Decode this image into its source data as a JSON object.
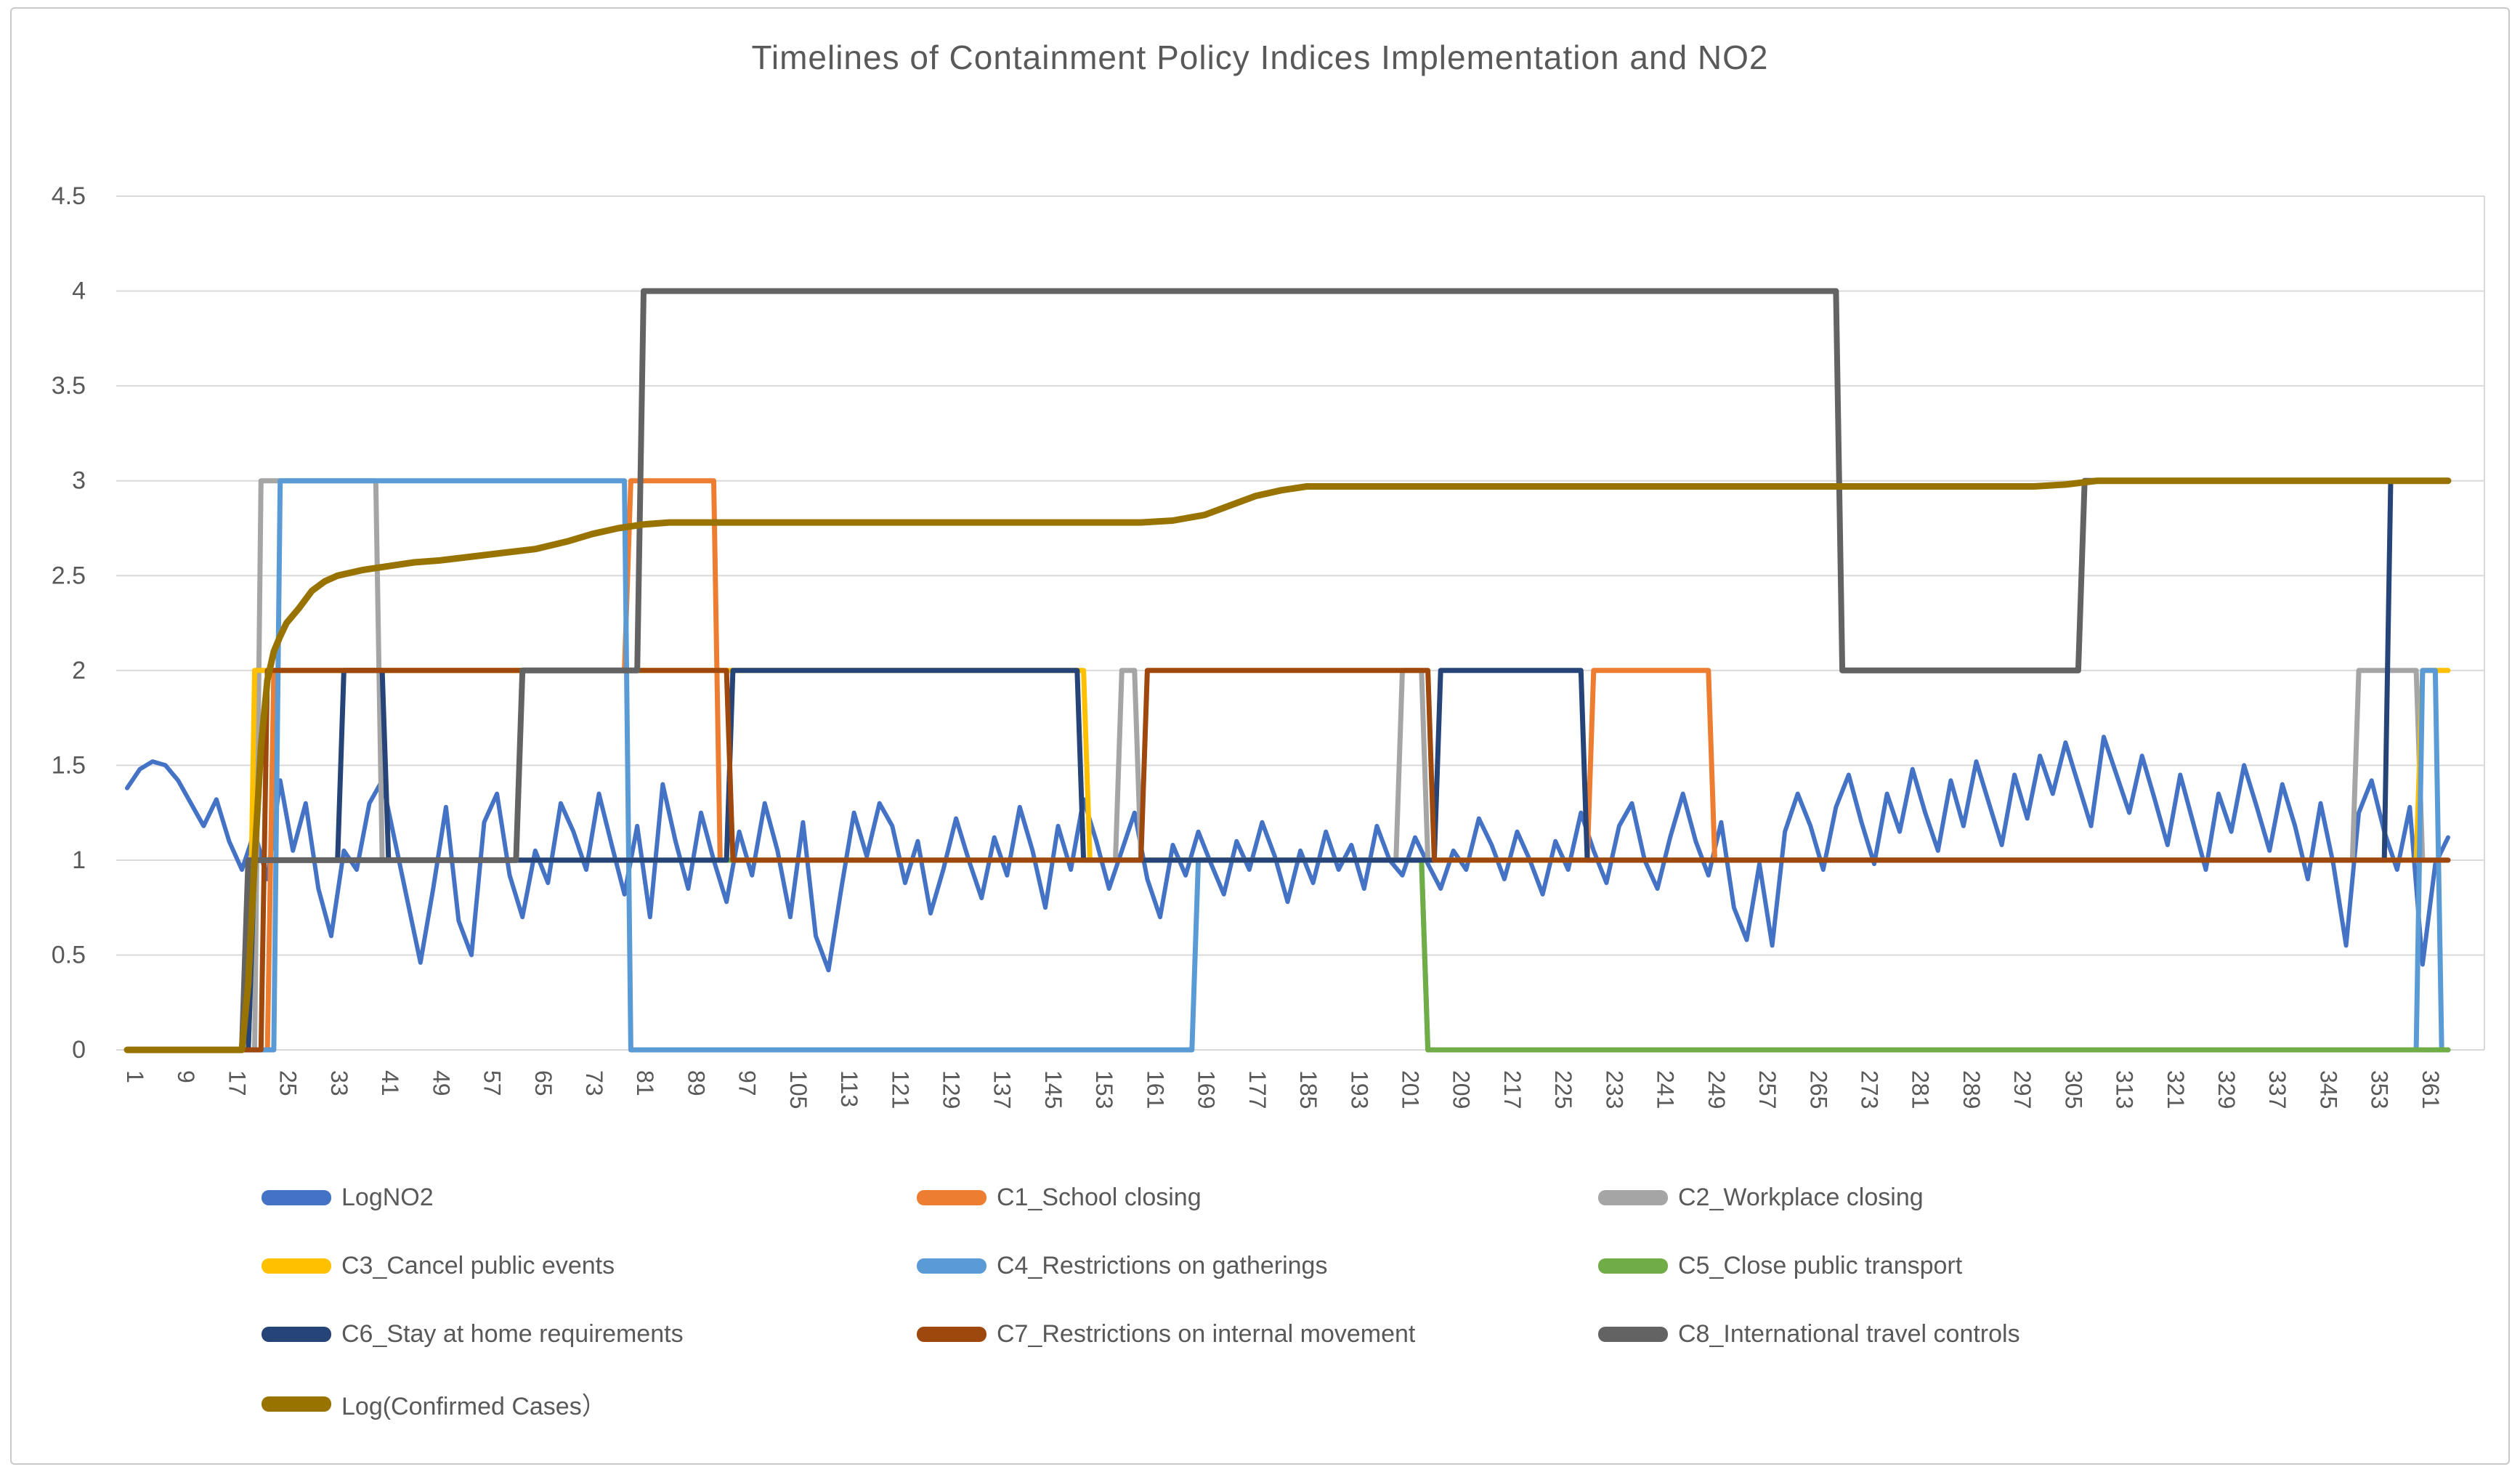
{
  "chart_data": {
    "type": "line",
    "title": "Timelines of Containment Policy Indices Implementation and NO2",
    "grid": true,
    "legend_position": "bottom",
    "x_axis": {
      "range": [
        1,
        365
      ],
      "tick_labels": [
        "1",
        "9",
        "17",
        "25",
        "33",
        "41",
        "49",
        "57",
        "65",
        "73",
        "81",
        "89",
        "97",
        "105",
        "113",
        "121",
        "129",
        "137",
        "145",
        "153",
        "161",
        "169",
        "177",
        "185",
        "193",
        "201",
        "209",
        "217",
        "225",
        "233",
        "241",
        "249",
        "257",
        "265",
        "273",
        "281",
        "289",
        "297",
        "305",
        "313",
        "321",
        "329",
        "337",
        "345",
        "353",
        "361"
      ]
    },
    "y_axis": {
      "range": [
        0,
        4.5
      ],
      "tick_labels": [
        "0",
        "0.5",
        "1",
        "1.5",
        "2",
        "2.5",
        "3",
        "3.5",
        "4",
        "4.5"
      ]
    },
    "series": [
      {
        "name": "LogNO2",
        "color": "#4472C4",
        "width": 6,
        "kind": "daily",
        "start_day": 1,
        "day_step": 2,
        "values": [
          1.38,
          1.48,
          1.52,
          1.5,
          1.42,
          1.3,
          1.18,
          1.32,
          1.1,
          0.95,
          1.15,
          0.9,
          1.42,
          1.05,
          1.3,
          0.85,
          0.6,
          1.05,
          0.95,
          1.3,
          1.42,
          1.1,
          0.78,
          0.46,
          0.85,
          1.28,
          0.68,
          0.5,
          1.2,
          1.35,
          0.92,
          0.7,
          1.05,
          0.88,
          1.3,
          1.15,
          0.95,
          1.35,
          1.08,
          0.82,
          1.18,
          0.7,
          1.4,
          1.1,
          0.85,
          1.25,
          1.0,
          0.78,
          1.15,
          0.92,
          1.3,
          1.05,
          0.7,
          1.2,
          0.6,
          0.42,
          0.85,
          1.25,
          1.02,
          1.3,
          1.18,
          0.88,
          1.1,
          0.72,
          0.95,
          1.22,
          1.0,
          0.8,
          1.12,
          0.92,
          1.28,
          1.05,
          0.75,
          1.18,
          0.95,
          1.32,
          1.1,
          0.85,
          1.05,
          1.25,
          0.9,
          0.7,
          1.08,
          0.92,
          1.15,
          0.98,
          0.82,
          1.1,
          0.95,
          1.2,
          1.02,
          0.78,
          1.05,
          0.88,
          1.15,
          0.95,
          1.08,
          0.85,
          1.18,
          1.0,
          0.92,
          1.12,
          0.98,
          0.85,
          1.05,
          0.95,
          1.22,
          1.08,
          0.9,
          1.15,
          1.0,
          0.82,
          1.1,
          0.95,
          1.25,
          1.05,
          0.88,
          1.18,
          1.3,
          1.0,
          0.85,
          1.12,
          1.35,
          1.1,
          0.92,
          1.2,
          0.75,
          0.58,
          0.98,
          0.55,
          1.15,
          1.35,
          1.18,
          0.95,
          1.28,
          1.45,
          1.2,
          0.98,
          1.35,
          1.15,
          1.48,
          1.25,
          1.05,
          1.42,
          1.18,
          1.52,
          1.3,
          1.08,
          1.45,
          1.22,
          1.55,
          1.35,
          1.62,
          1.4,
          1.18,
          1.65,
          1.45,
          1.25,
          1.55,
          1.32,
          1.08,
          1.45,
          1.2,
          0.95,
          1.35,
          1.15,
          1.5,
          1.28,
          1.05,
          1.4,
          1.18,
          0.9,
          1.3,
          0.98,
          0.55,
          1.25,
          1.42,
          1.15,
          0.95,
          1.28,
          0.45,
          0.98,
          1.12
        ]
      },
      {
        "name": "C1_School closing",
        "color": "#ED7D31",
        "width": 7,
        "kind": "step",
        "points": [
          [
            1,
            0
          ],
          [
            23,
            0
          ],
          [
            24,
            2
          ],
          [
            79,
            2
          ],
          [
            80,
            3
          ],
          [
            93,
            3
          ],
          [
            94,
            1
          ],
          [
            230,
            1
          ],
          [
            231,
            2
          ],
          [
            249,
            2
          ],
          [
            250,
            1
          ],
          [
            365,
            1
          ]
        ]
      },
      {
        "name": "C2_Workplace closing",
        "color": "#A5A5A5",
        "width": 7,
        "kind": "step",
        "points": [
          [
            1,
            0
          ],
          [
            21,
            0
          ],
          [
            22,
            3
          ],
          [
            40,
            3
          ],
          [
            41,
            1
          ],
          [
            156,
            1
          ],
          [
            157,
            2
          ],
          [
            159,
            2
          ],
          [
            160,
            1
          ],
          [
            200,
            1
          ],
          [
            201,
            2
          ],
          [
            204,
            2
          ],
          [
            205,
            1
          ],
          [
            350,
            1
          ],
          [
            351,
            2
          ],
          [
            360,
            2
          ],
          [
            361,
            1
          ],
          [
            365,
            1
          ]
        ]
      },
      {
        "name": "C3_Cancel public events",
        "color": "#FFC000",
        "width": 7,
        "kind": "step",
        "points": [
          [
            1,
            0
          ],
          [
            20,
            0
          ],
          [
            21,
            2
          ],
          [
            151,
            2
          ],
          [
            152,
            1
          ],
          [
            360,
            1
          ],
          [
            361,
            2
          ],
          [
            365,
            2
          ]
        ]
      },
      {
        "name": "C4_Restrictions on gatherings",
        "color": "#5B9BD5",
        "width": 7,
        "kind": "step",
        "points": [
          [
            1,
            0
          ],
          [
            24,
            0
          ],
          [
            25,
            3
          ],
          [
            79,
            3
          ],
          [
            80,
            0
          ],
          [
            168,
            0
          ],
          [
            169,
            1
          ],
          [
            204,
            1
          ],
          [
            205,
            0
          ],
          [
            360,
            0
          ],
          [
            361,
            2
          ],
          [
            363,
            2
          ],
          [
            364,
            0
          ],
          [
            365,
            0
          ]
        ]
      },
      {
        "name": "C5_Close public transport",
        "color": "#70AD47",
        "width": 7,
        "kind": "step",
        "points": [
          [
            1,
            0
          ],
          [
            20,
            0
          ],
          [
            21,
            1
          ],
          [
            204,
            1
          ],
          [
            205,
            0
          ],
          [
            365,
            0
          ]
        ]
      },
      {
        "name": "C6_Stay at home requirements",
        "color": "#264478",
        "width": 7,
        "kind": "step",
        "points": [
          [
            1,
            0
          ],
          [
            20,
            0
          ],
          [
            21,
            1
          ],
          [
            34,
            1
          ],
          [
            35,
            2
          ],
          [
            41,
            2
          ],
          [
            42,
            1
          ],
          [
            95,
            1
          ],
          [
            96,
            2
          ],
          [
            150,
            2
          ],
          [
            151,
            1
          ],
          [
            206,
            1
          ],
          [
            207,
            2
          ],
          [
            229,
            2
          ],
          [
            230,
            1
          ],
          [
            355,
            1
          ],
          [
            356,
            3
          ],
          [
            365,
            3
          ]
        ]
      },
      {
        "name": "C7_Restrictions on internal movement",
        "color": "#9E480E",
        "width": 7,
        "kind": "step",
        "points": [
          [
            1,
            0
          ],
          [
            22,
            0
          ],
          [
            23,
            2
          ],
          [
            95,
            2
          ],
          [
            96,
            1
          ],
          [
            160,
            1
          ],
          [
            161,
            2
          ],
          [
            205,
            2
          ],
          [
            206,
            1
          ],
          [
            365,
            1
          ]
        ]
      },
      {
        "name": "C8_International travel controls",
        "color": "#636363",
        "width": 8,
        "kind": "step",
        "points": [
          [
            1,
            0
          ],
          [
            19,
            0
          ],
          [
            20,
            1
          ],
          [
            62,
            1
          ],
          [
            63,
            2
          ],
          [
            81,
            2
          ],
          [
            82,
            4
          ],
          [
            269,
            4
          ],
          [
            270,
            2
          ],
          [
            307,
            2
          ],
          [
            308,
            3
          ],
          [
            365,
            3
          ]
        ]
      },
      {
        "name": "Log(Confirmed Cases）",
        "color": "#997300",
        "width": 9,
        "kind": "curve",
        "points": [
          [
            1,
            0
          ],
          [
            19,
            0
          ],
          [
            20,
            0.35
          ],
          [
            21,
            1.0
          ],
          [
            22,
            1.6
          ],
          [
            23,
            1.95
          ],
          [
            24,
            2.1
          ],
          [
            25,
            2.18
          ],
          [
            26,
            2.25
          ],
          [
            28,
            2.33
          ],
          [
            30,
            2.42
          ],
          [
            32,
            2.47
          ],
          [
            34,
            2.5
          ],
          [
            38,
            2.53
          ],
          [
            42,
            2.55
          ],
          [
            46,
            2.57
          ],
          [
            50,
            2.58
          ],
          [
            55,
            2.6
          ],
          [
            60,
            2.62
          ],
          [
            65,
            2.64
          ],
          [
            70,
            2.68
          ],
          [
            74,
            2.72
          ],
          [
            78,
            2.75
          ],
          [
            82,
            2.77
          ],
          [
            86,
            2.78
          ],
          [
            120,
            2.78
          ],
          [
            160,
            2.78
          ],
          [
            165,
            2.79
          ],
          [
            170,
            2.82
          ],
          [
            174,
            2.87
          ],
          [
            178,
            2.92
          ],
          [
            182,
            2.95
          ],
          [
            186,
            2.97
          ],
          [
            230,
            2.97
          ],
          [
            270,
            2.97
          ],
          [
            300,
            2.97
          ],
          [
            305,
            2.98
          ],
          [
            310,
            3.0
          ],
          [
            365,
            3.0
          ]
        ]
      }
    ],
    "style": {
      "grid_color": "#D9D9D9",
      "axis_text_color": "#595959",
      "title_color": "#595959",
      "background": "#FFFFFF"
    }
  }
}
